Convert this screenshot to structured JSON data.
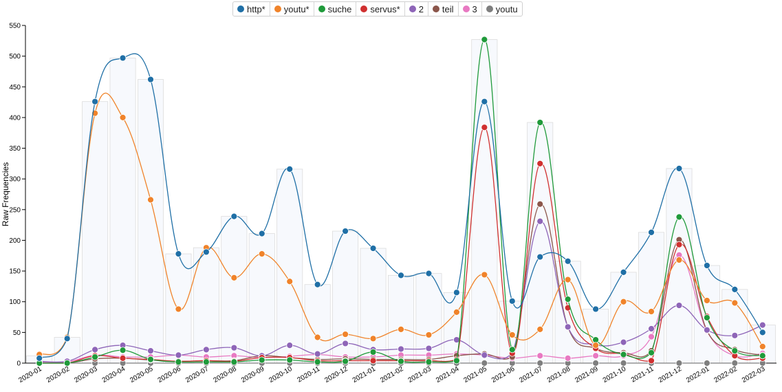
{
  "chart_data": {
    "type": "line",
    "ylabel": "Raw Frequencies",
    "ylim": [
      0,
      550
    ],
    "yticks": [
      "0",
      "50",
      "100",
      "150",
      "200",
      "250",
      "300",
      "350",
      "400",
      "450",
      "500",
      "550"
    ],
    "categories": [
      "2020-01",
      "2020-02",
      "2020-03",
      "2020-04",
      "2020-05",
      "2020-06",
      "2020-07",
      "2020-08",
      "2020-09",
      "2020-10",
      "2020-11",
      "2020-12",
      "2021-01",
      "2021-02",
      "2021-03",
      "2021-04",
      "2021-05",
      "2021-06",
      "2021-07",
      "2021-08",
      "2021-09",
      "2021-10",
      "2021-11",
      "2021-12",
      "2022-01",
      "2022-02",
      "2022-03"
    ],
    "totals": [
      12,
      42,
      426,
      497,
      462,
      178,
      188,
      239,
      211,
      316,
      128,
      215,
      187,
      143,
      146,
      115,
      527,
      101,
      392,
      166,
      88,
      148,
      213,
      317,
      159,
      120,
      62
    ],
    "legend_placement": "top-center",
    "series": [
      {
        "name": "http*",
        "color": "#1f6fa6",
        "values": [
          8,
          40,
          426,
          497,
          462,
          178,
          181,
          239,
          211,
          316,
          128,
          215,
          187,
          143,
          146,
          115,
          426,
          101,
          173,
          166,
          88,
          148,
          213,
          317,
          159,
          120,
          50
        ]
      },
      {
        "name": "youtu*",
        "color": "#f0832a",
        "values": [
          14,
          42,
          407,
          400,
          266,
          88,
          188,
          139,
          178,
          133,
          42,
          47,
          40,
          55,
          46,
          83,
          144,
          46,
          55,
          136,
          29,
          100,
          84,
          168,
          102,
          98,
          27
        ]
      },
      {
        "name": "suche",
        "color": "#1f9a3a",
        "values": [
          0,
          0,
          10,
          21,
          6,
          2,
          2,
          2,
          5,
          5,
          2,
          3,
          18,
          3,
          2,
          4,
          527,
          22,
          392,
          104,
          38,
          14,
          17,
          238,
          74,
          20,
          12
        ]
      },
      {
        "name": "servus*",
        "color": "#d03030",
        "values": [
          0,
          0,
          12,
          8,
          6,
          3,
          4,
          3,
          9,
          9,
          4,
          4,
          4,
          4,
          4,
          6,
          384,
          16,
          325,
          90,
          24,
          15,
          4,
          193,
          76,
          12,
          8
        ]
      },
      {
        "name": "2",
        "color": "#8e65b8",
        "values": [
          3,
          3,
          22,
          29,
          20,
          13,
          22,
          25,
          12,
          29,
          15,
          32,
          22,
          23,
          24,
          38,
          13,
          16,
          231,
          59,
          30,
          34,
          56,
          94,
          54,
          45,
          62
        ]
      },
      {
        "name": "teil",
        "color": "#8b564b",
        "values": [
          0,
          0,
          7,
          8,
          5,
          3,
          4,
          4,
          12,
          9,
          6,
          7,
          6,
          6,
          6,
          12,
          15,
          10,
          259,
          59,
          24,
          17,
          20,
          201,
          53,
          22,
          13
        ]
      },
      {
        "name": "3",
        "color": "#e879c2",
        "values": [
          2,
          2,
          13,
          10,
          10,
          13,
          10,
          12,
          9,
          11,
          14,
          10,
          10,
          13,
          13,
          15,
          13,
          8,
          12,
          8,
          12,
          12,
          43,
          176,
          52,
          12,
          16
        ]
      },
      {
        "name": "youtu",
        "color": "#7f7f7f",
        "values": [
          0,
          0,
          0,
          0,
          0,
          0,
          0,
          0,
          0,
          0,
          0,
          0,
          0,
          0,
          0,
          0,
          0,
          0,
          0,
          0,
          0,
          0,
          0,
          0,
          0,
          0,
          0
        ]
      }
    ]
  }
}
